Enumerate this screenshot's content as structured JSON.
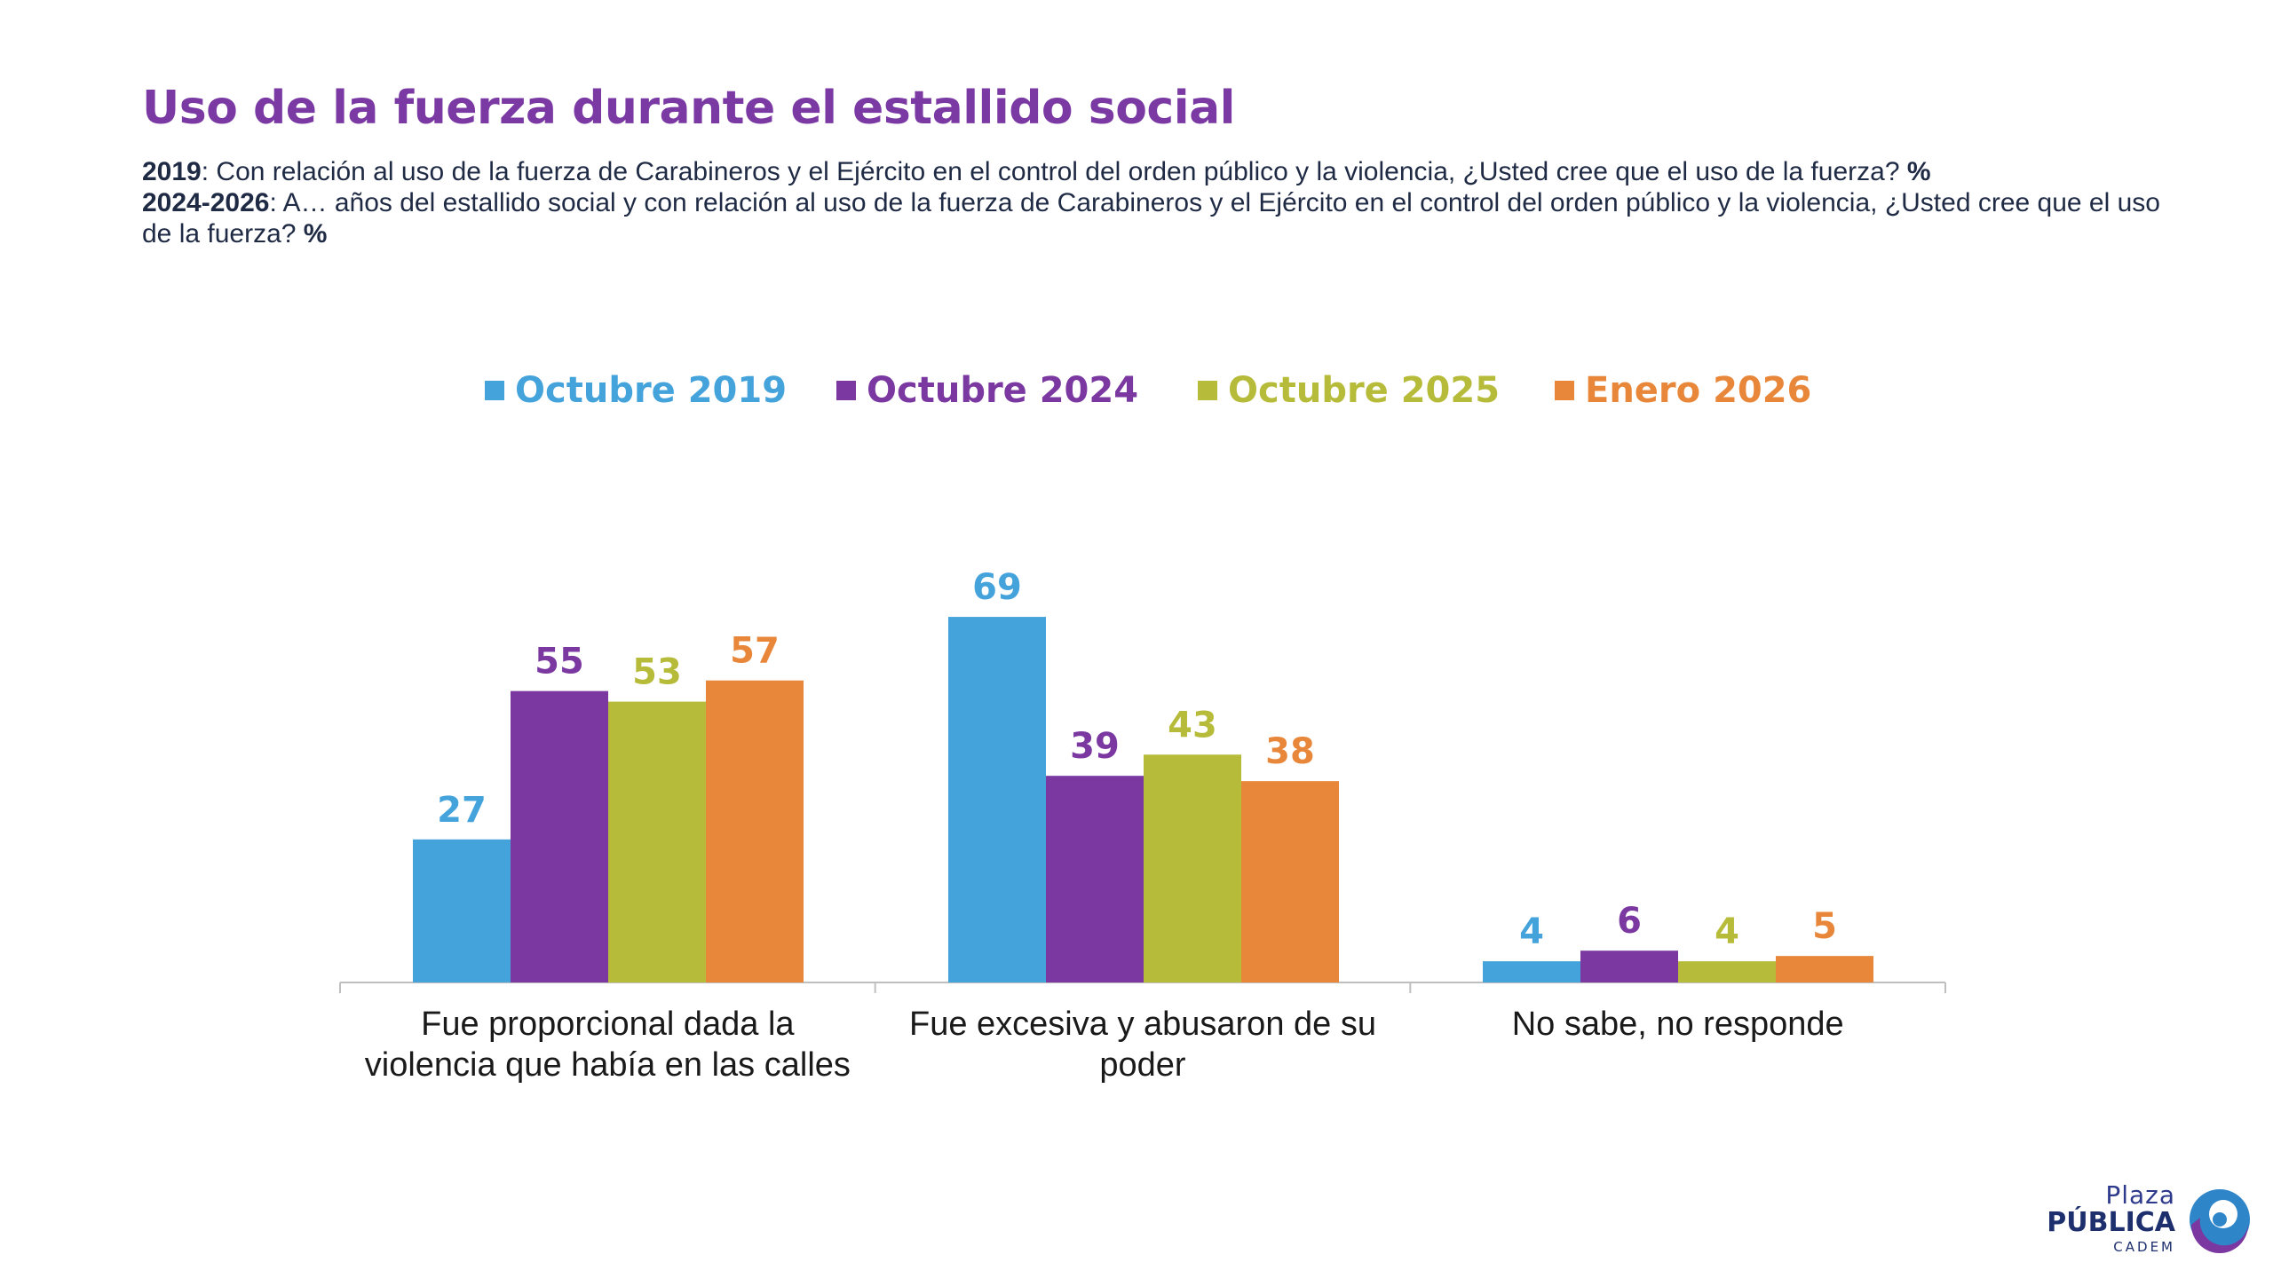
{
  "title": "Uso de la fuerza durante el estallido social",
  "subtitle": {
    "line1_year": "2019",
    "line1_text": ": Con relación al uso de la fuerza de Carabineros y el Ejército en el control del orden público y la violencia, ¿Usted cree que el uso de la fuerza?",
    "line1_pct": "%",
    "line2_year": "2024-2026",
    "line2_text": ": A… años del estallido social y con relación al uso de la fuerza de Carabineros y el Ejército en el control del orden público y la violencia, ¿Usted cree que el uso de la fuerza?",
    "line2_pct": "%"
  },
  "legend": [
    {
      "label": "Octubre 2019",
      "color": "#45a3dc"
    },
    {
      "label": "Octubre 2024",
      "color": "#7a38a0"
    },
    {
      "label": "Octubre 2025",
      "color": "#b7bb3a"
    },
    {
      "label": "Enero 2026",
      "color": "#e8873a"
    }
  ],
  "chart_data": {
    "type": "bar",
    "categories": [
      [
        "Fue proporcional dada la",
        "violencia que había en las calles"
      ],
      [
        "Fue excesiva y abusaron de su",
        "poder"
      ],
      [
        "No sabe, no responde"
      ]
    ],
    "series": [
      {
        "name": "Octubre 2019",
        "color": "#45a3dc",
        "values": [
          27,
          69,
          4
        ]
      },
      {
        "name": "Octubre 2024",
        "color": "#7a38a0",
        "values": [
          55,
          39,
          6
        ]
      },
      {
        "name": "Octubre 2025",
        "color": "#b7bb3a",
        "values": [
          53,
          43,
          4
        ]
      },
      {
        "name": "Enero 2026",
        "color": "#e8873a",
        "values": [
          57,
          38,
          5
        ]
      }
    ],
    "ylim": [
      0,
      69
    ],
    "grid": false,
    "legend_position": "top"
  },
  "logo": {
    "line1": "Plaza",
    "line2": "PÚBLICA",
    "line3": "CADEM"
  }
}
